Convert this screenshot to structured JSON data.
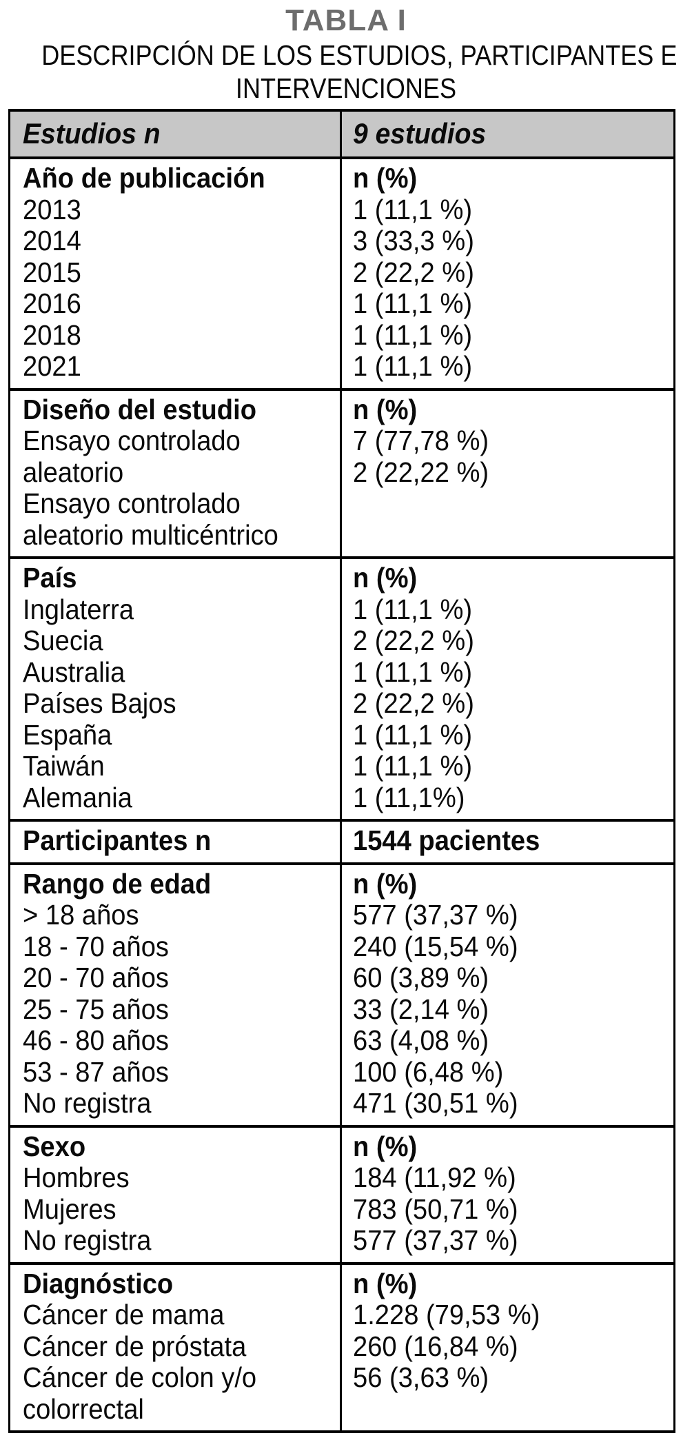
{
  "title": "TABLA I",
  "subtitle_lines": [
    "DESCRIPCIÓN DE LOS ESTUDIOS, PARTICIPANTES E",
    "INTERVENCIONES"
  ],
  "colors": {
    "header_bg": "#c7c7c7",
    "title_gray": "#6d6d6d",
    "border": "#000000"
  },
  "table": {
    "header": {
      "left": "Estudios n",
      "right": "9 estudios"
    },
    "sections": [
      {
        "id": "ano-de-publicacion",
        "left": [
          {
            "text": "Año de publicación",
            "bold": true
          },
          {
            "text": "2013"
          },
          {
            "text": "2014"
          },
          {
            "text": "2015"
          },
          {
            "text": "2016"
          },
          {
            "text": "2018"
          },
          {
            "text": "2021"
          }
        ],
        "right": [
          {
            "text": "n (%)",
            "bold": true
          },
          {
            "text": "1 (11,1 %)"
          },
          {
            "text": "3 (33,3 %)"
          },
          {
            "text": "2 (22,2 %)"
          },
          {
            "text": "1 (11,1 %)"
          },
          {
            "text": "1 (11,1 %)"
          },
          {
            "text": "1 (11,1 %)"
          }
        ]
      },
      {
        "id": "diseno-del-estudio",
        "left": [
          {
            "text": "Diseño del estudio",
            "bold": true
          },
          {
            "text": "Ensayo controlado"
          },
          {
            "text": "aleatorio"
          },
          {
            "text": "Ensayo controlado"
          },
          {
            "text": "aleatorio multicéntrico"
          }
        ],
        "right": [
          {
            "text": "n (%)",
            "bold": true
          },
          {
            "text": "7 (77,78 %)"
          },
          {
            "text": "2 (22,22 %)"
          }
        ]
      },
      {
        "id": "pais",
        "left": [
          {
            "text": "País",
            "bold": true
          },
          {
            "text": "Inglaterra"
          },
          {
            "text": "Suecia"
          },
          {
            "text": "Australia"
          },
          {
            "text": "Países Bajos"
          },
          {
            "text": "España"
          },
          {
            "text": "Taiwán"
          },
          {
            "text": "Alemania"
          }
        ],
        "right": [
          {
            "text": "n (%)",
            "bold": true
          },
          {
            "text": "1 (11,1 %)"
          },
          {
            "text": "2 (22,2 %)"
          },
          {
            "text": "1 (11,1 %)"
          },
          {
            "text": "2 (22,2 %)"
          },
          {
            "text": "1 (11,1 %)"
          },
          {
            "text": "1 (11,1 %)"
          },
          {
            "text": "1 (11,1%)"
          }
        ]
      },
      {
        "id": "participantes",
        "left": [
          {
            "text": "Participantes n",
            "bold": true
          }
        ],
        "right": [
          {
            "text": "1544 pacientes",
            "bold": true
          }
        ]
      },
      {
        "id": "rango-de-edad",
        "left": [
          {
            "text": "Rango de edad",
            "bold": true
          },
          {
            "text": "> 18 años"
          },
          {
            "text": "18 - 70 años"
          },
          {
            "text": "20 - 70 años"
          },
          {
            "text": "25 - 75 años"
          },
          {
            "text": "46 - 80 años"
          },
          {
            "text": "53 - 87 años"
          },
          {
            "text": "No registra"
          }
        ],
        "right": [
          {
            "text": "n (%)",
            "bold": true
          },
          {
            "text": "577 (37,37 %)"
          },
          {
            "text": "240 (15,54 %)"
          },
          {
            "text": "60 (3,89 %)"
          },
          {
            "text": "33 (2,14 %)"
          },
          {
            "text": "63 (4,08 %)"
          },
          {
            "text": "100 (6,48 %)"
          },
          {
            "text": "471 (30,51 %)"
          }
        ]
      },
      {
        "id": "sexo",
        "left": [
          {
            "text": "Sexo",
            "bold": true
          },
          {
            "text": "Hombres"
          },
          {
            "text": "Mujeres"
          },
          {
            "text": "No registra"
          }
        ],
        "right": [
          {
            "text": "n (%)",
            "bold": true
          },
          {
            "text": "184 (11,92 %)"
          },
          {
            "text": "783 (50,71 %)"
          },
          {
            "text": "577 (37,37 %)"
          }
        ]
      },
      {
        "id": "diagnostico",
        "left": [
          {
            "text": "Diagnóstico",
            "bold": true
          },
          {
            "text": "Cáncer de mama"
          },
          {
            "text": "Cáncer de próstata"
          },
          {
            "text": "Cáncer de colon y/o"
          },
          {
            "text": "colorrectal"
          }
        ],
        "right": [
          {
            "text": "n (%)",
            "bold": true
          },
          {
            "text": "1.228 (79,53 %)"
          },
          {
            "text": "260 (16,84 %)"
          },
          {
            "text": "56 (3,63 %)"
          }
        ]
      }
    ]
  }
}
